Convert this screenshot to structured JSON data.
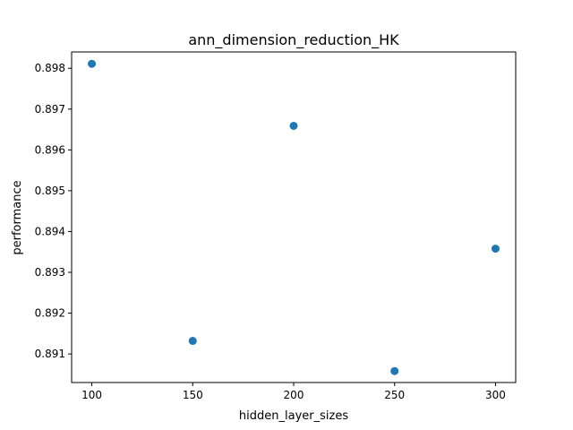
{
  "chart_data": {
    "type": "scatter",
    "title": "ann_dimension_reduction_HK",
    "xlabel": "hidden_layer_sizes",
    "ylabel": "performance",
    "xlim": [
      90,
      310
    ],
    "ylim": [
      0.8903,
      0.8984
    ],
    "xticks": [
      100,
      150,
      200,
      250,
      300
    ],
    "xtick_labels": [
      "100",
      "150",
      "200",
      "250",
      "300"
    ],
    "yticks": [
      0.891,
      0.892,
      0.893,
      0.894,
      0.895,
      0.896,
      0.897,
      0.898
    ],
    "ytick_labels": [
      "0.891",
      "0.892",
      "0.893",
      "0.894",
      "0.895",
      "0.896",
      "0.897",
      "0.898"
    ],
    "grid": false,
    "marker_color": "#1f77b4",
    "points": [
      {
        "x": 100,
        "y": 0.89811
      },
      {
        "x": 150,
        "y": 0.89132
      },
      {
        "x": 200,
        "y": 0.89659
      },
      {
        "x": 250,
        "y": 0.89058
      },
      {
        "x": 300,
        "y": 0.89358
      }
    ]
  }
}
